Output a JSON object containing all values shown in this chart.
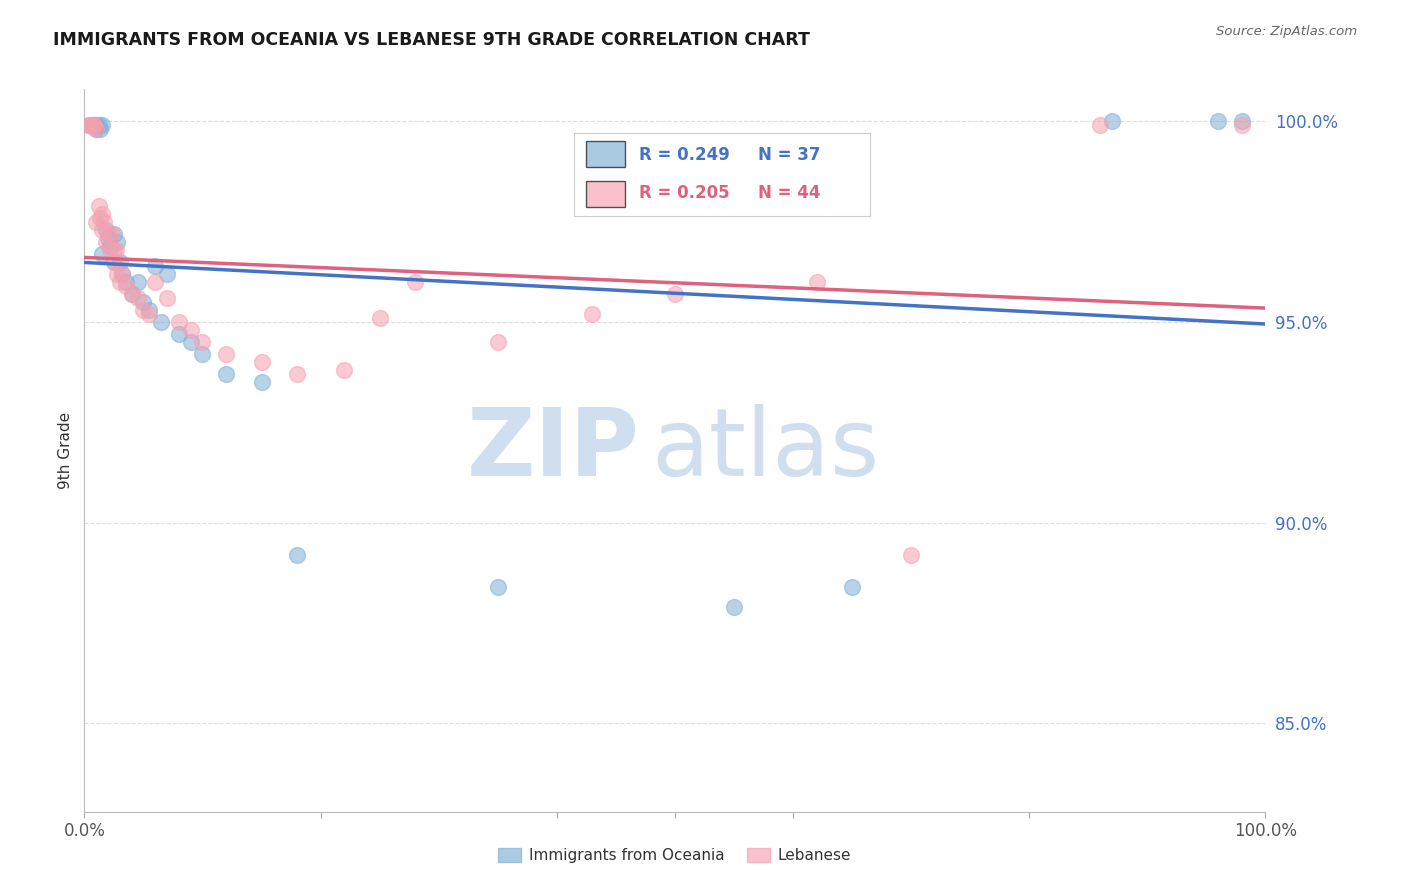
{
  "title": "IMMIGRANTS FROM OCEANIA VS LEBANESE 9TH GRADE CORRELATION CHART",
  "source": "Source: ZipAtlas.com",
  "ylabel": "9th Grade",
  "xlim": [
    0.0,
    1.0
  ],
  "ylim": [
    0.828,
    1.008
  ],
  "ytick_labels": [
    "85.0%",
    "90.0%",
    "95.0%",
    "100.0%"
  ],
  "ytick_values": [
    0.85,
    0.9,
    0.95,
    1.0
  ],
  "xtick_labels": [
    "0.0%",
    "",
    "",
    "",
    "",
    "",
    "100.0%"
  ],
  "xtick_values": [
    0.0,
    0.2,
    0.4,
    0.5,
    0.6,
    0.8,
    1.0
  ],
  "oceania_color": "#7EB0D5",
  "lebanese_color": "#F5A0B0",
  "oceania_line_color": "#4472C4",
  "lebanese_line_color": "#E06080",
  "legend_label_oceania": "Immigrants from Oceania",
  "legend_label_lebanese": "Lebanese",
  "R_oceania": 0.249,
  "N_oceania": 37,
  "R_lebanese": 0.205,
  "N_lebanese": 44,
  "oceania_x": [
    0.005,
    0.007,
    0.008,
    0.01,
    0.01,
    0.012,
    0.013,
    0.015,
    0.015,
    0.018,
    0.02,
    0.022,
    0.025,
    0.025,
    0.028,
    0.03,
    0.032,
    0.035,
    0.04,
    0.045,
    0.05,
    0.055,
    0.06,
    0.065,
    0.07,
    0.08,
    0.09,
    0.1,
    0.12,
    0.15,
    0.18,
    0.35,
    0.55,
    0.65,
    0.87,
    0.96,
    0.98
  ],
  "oceania_y": [
    0.999,
    0.999,
    0.999,
    0.999,
    0.998,
    0.999,
    0.998,
    0.999,
    0.967,
    0.973,
    0.971,
    0.969,
    0.972,
    0.965,
    0.97,
    0.965,
    0.962,
    0.96,
    0.957,
    0.96,
    0.955,
    0.953,
    0.964,
    0.95,
    0.962,
    0.947,
    0.945,
    0.942,
    0.937,
    0.935,
    0.892,
    0.884,
    0.879,
    0.884,
    1.0,
    1.0,
    1.0
  ],
  "lebanese_x": [
    0.003,
    0.005,
    0.007,
    0.008,
    0.01,
    0.01,
    0.012,
    0.013,
    0.015,
    0.015,
    0.017,
    0.018,
    0.02,
    0.022,
    0.023,
    0.025,
    0.025,
    0.027,
    0.028,
    0.03,
    0.032,
    0.035,
    0.04,
    0.045,
    0.05,
    0.055,
    0.06,
    0.07,
    0.08,
    0.09,
    0.1,
    0.12,
    0.15,
    0.18,
    0.22,
    0.25,
    0.28,
    0.35,
    0.43,
    0.5,
    0.62,
    0.7,
    0.86,
    0.98
  ],
  "lebanese_y": [
    0.999,
    0.999,
    0.999,
    0.999,
    0.998,
    0.975,
    0.979,
    0.976,
    0.977,
    0.973,
    0.975,
    0.97,
    0.972,
    0.968,
    0.972,
    0.968,
    0.965,
    0.968,
    0.962,
    0.96,
    0.962,
    0.959,
    0.957,
    0.956,
    0.953,
    0.952,
    0.96,
    0.956,
    0.95,
    0.948,
    0.945,
    0.942,
    0.94,
    0.937,
    0.938,
    0.951,
    0.96,
    0.945,
    0.952,
    0.957,
    0.96,
    0.892,
    0.999,
    0.999
  ],
  "background_color": "#ffffff",
  "grid_color": "#dddddd",
  "watermark_zip": "ZIP",
  "watermark_atlas": "atlas",
  "watermark_color": "#D0DFF0"
}
